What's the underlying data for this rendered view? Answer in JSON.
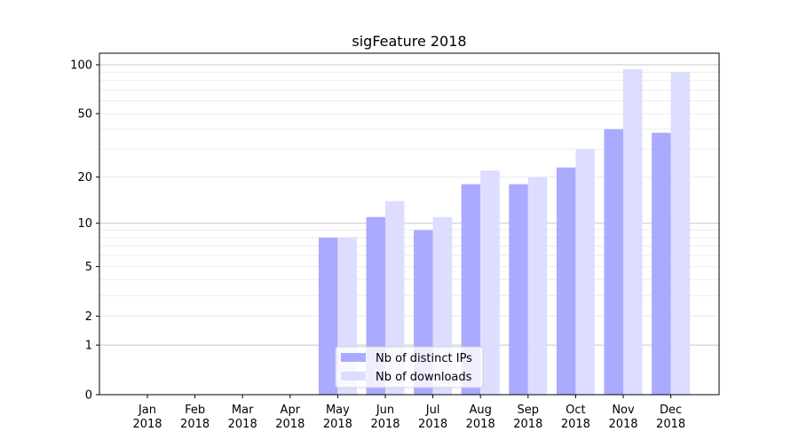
{
  "chart_data": {
    "type": "bar",
    "title": "sigFeature 2018",
    "xlabel": "",
    "ylabel": "",
    "yscale": "log(1+x)",
    "ylim": [
      0,
      120
    ],
    "yticks": [
      0,
      1,
      2,
      5,
      10,
      20,
      50,
      100
    ],
    "grid": true,
    "legend_position": "lower-center",
    "categories": [
      "Jan\n2018",
      "Feb\n2018",
      "Mar\n2018",
      "Apr\n2018",
      "May\n2018",
      "Jun\n2018",
      "Jul\n2018",
      "Aug\n2018",
      "Sep\n2018",
      "Oct\n2018",
      "Nov\n2018",
      "Dec\n2018"
    ],
    "series": [
      {
        "name": "Nb of distinct IPs",
        "color": "#aaaaff",
        "values": [
          0,
          0,
          0,
          0,
          8,
          11,
          9,
          18,
          18,
          23,
          40,
          38
        ]
      },
      {
        "name": "Nb of downloads",
        "color": "#ddddff",
        "values": [
          0,
          0,
          0,
          0,
          8,
          14,
          11,
          22,
          20,
          30,
          94,
          90
        ]
      }
    ]
  }
}
